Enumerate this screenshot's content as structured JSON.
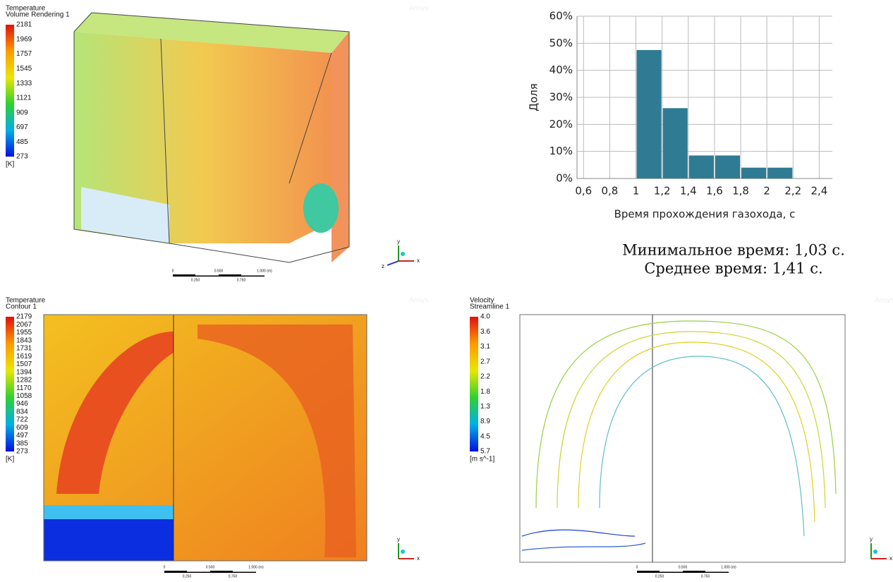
{
  "panels": [
    {
      "legend_title": "Temperature",
      "legend_subtitle": "Volume Rendering 1",
      "legend_labels": [
        "2181",
        "1969",
        "1757",
        "1545",
        "1333",
        "1121",
        "909",
        "697",
        "485",
        "273"
      ],
      "unit": "[K]",
      "scale_labels": [
        "0",
        "0.500",
        "1.000 (m)",
        "0.250",
        "0.750"
      ],
      "axes": [
        "y",
        "z",
        "x"
      ],
      "watermark": "Ansys"
    },
    {
      "legend_title": "Temperature",
      "legend_subtitle": "Contour 1",
      "legend_labels": [
        "2179",
        "2067",
        "1955",
        "1843",
        "1731",
        "1619",
        "1507",
        "1394",
        "1282",
        "1170",
        "1058",
        "946",
        "834",
        "722",
        "609",
        "497",
        "385",
        "273"
      ],
      "unit": "[K]",
      "scale_labels": [
        "0",
        "0.500",
        "1.000 (m)",
        "0.250",
        "0.750"
      ],
      "axes": [
        "y",
        "x"
      ],
      "watermark": "Ansys"
    },
    {
      "legend_title": "Velocity",
      "legend_subtitle": "Streamline 1",
      "legend_labels": [
        "4.0",
        "3.6",
        "3.1",
        "2.7",
        "2.2",
        "1.8",
        "1.3",
        "8.9",
        "4.5",
        "5.7"
      ],
      "unit": "[m s^-1]",
      "scale_labels": [
        "0",
        "0.500",
        "1.000 (m)",
        "0.250",
        "0.750"
      ],
      "axes": [
        "y",
        "x"
      ],
      "watermark": "Ansys"
    }
  ],
  "chart_data": {
    "type": "histogram",
    "ylabel": "Доля",
    "xlabel": "Время прохождения газохода, с",
    "bins": [
      1,
      1.2,
      1.4,
      1.6,
      1.8,
      2,
      2.2
    ],
    "values": [
      47.5,
      26,
      8.5,
      8.5,
      4,
      4
    ],
    "color": "#2e7b93",
    "ylim": [
      0,
      60
    ],
    "yticks": [
      {
        "value": 0,
        "label": "0%"
      },
      {
        "value": 10,
        "label": "10%"
      },
      {
        "value": 20,
        "label": "20%"
      },
      {
        "value": 30,
        "label": "30%"
      },
      {
        "value": 40,
        "label": "40%"
      },
      {
        "value": 50,
        "label": "50%"
      },
      {
        "value": 60,
        "label": "60%"
      }
    ],
    "xlim": [
      0.55,
      2.5
    ],
    "xticks": [
      {
        "value": 0.6,
        "label": "0,6"
      },
      {
        "value": 0.8,
        "label": "0,8"
      },
      1,
      {
        "value": 1.2,
        "label": "1,2"
      },
      {
        "value": 1.4,
        "label": "1,4"
      },
      {
        "value": 1.6,
        "label": "1,6"
      },
      {
        "value": 1.8,
        "label": "1,8"
      },
      2,
      {
        "value": 2.2,
        "label": "2,2"
      },
      {
        "value": 2.4,
        "label": "2,4"
      }
    ],
    "grid": true
  },
  "captions": [
    "Минимальное время: 1,03 с.",
    "Среднее время: 1,41 с."
  ]
}
